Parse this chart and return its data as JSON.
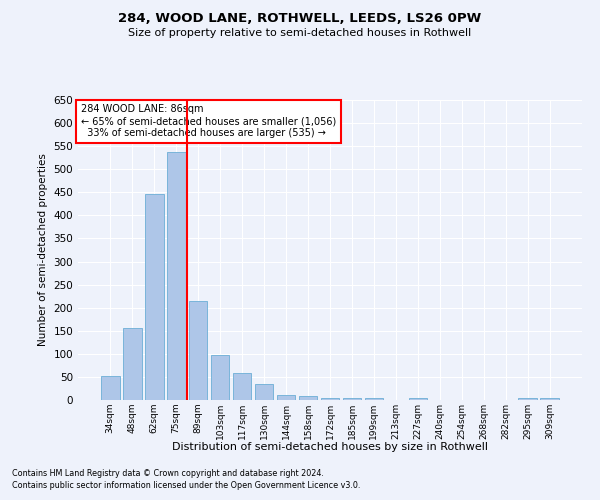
{
  "title1": "284, WOOD LANE, ROTHWELL, LEEDS, LS26 0PW",
  "title2": "Size of property relative to semi-detached houses in Rothwell",
  "xlabel": "Distribution of semi-detached houses by size in Rothwell",
  "ylabel": "Number of semi-detached properties",
  "categories": [
    "34sqm",
    "48sqm",
    "62sqm",
    "75sqm",
    "89sqm",
    "103sqm",
    "117sqm",
    "130sqm",
    "144sqm",
    "158sqm",
    "172sqm",
    "185sqm",
    "199sqm",
    "213sqm",
    "227sqm",
    "240sqm",
    "254sqm",
    "268sqm",
    "282sqm",
    "295sqm",
    "309sqm"
  ],
  "values": [
    52,
    155,
    447,
    537,
    215,
    98,
    58,
    35,
    10,
    8,
    5,
    5,
    5,
    0,
    5,
    0,
    0,
    0,
    0,
    5,
    5
  ],
  "bar_color": "#aec6e8",
  "bar_edge_color": "#6baed6",
  "vline_color": "red",
  "property_label": "284 WOOD LANE: 86sqm",
  "pct_smaller": "65%",
  "count_smaller": "1,056",
  "pct_larger": "33%",
  "count_larger": "535",
  "ylim": [
    0,
    650
  ],
  "yticks": [
    0,
    50,
    100,
    150,
    200,
    250,
    300,
    350,
    400,
    450,
    500,
    550,
    600,
    650
  ],
  "footnote1": "Contains HM Land Registry data © Crown copyright and database right 2024.",
  "footnote2": "Contains public sector information licensed under the Open Government Licence v3.0.",
  "background_color": "#eef2fb",
  "grid_color": "#ffffff"
}
